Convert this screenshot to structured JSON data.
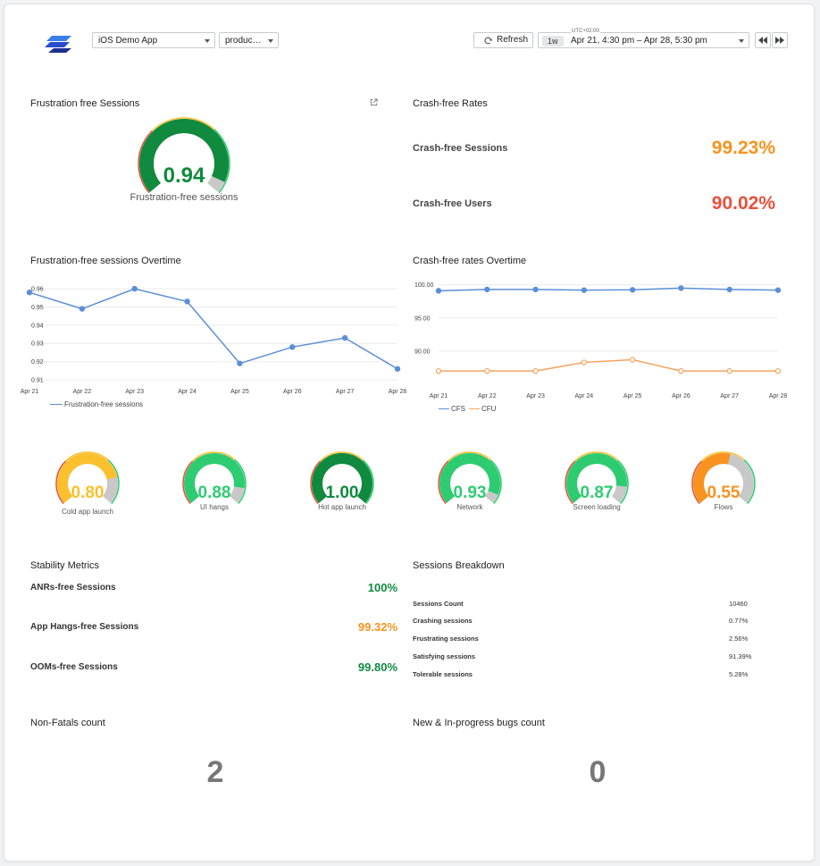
{
  "header": {
    "app_select": "iOS Demo App",
    "env_select": "produc…",
    "refresh_label": "Refresh",
    "timezone": "UTC+02:00",
    "range_tag": "1w",
    "date_range": "Apr 21, 4:30 pm – Apr 28, 5:30 pm"
  },
  "frustration": {
    "title": "Frustration free Sessions",
    "gauge_value_text": "0.94",
    "gauge_value": 0.94,
    "gauge_label": "Frustration-free sessions"
  },
  "crash_rates": {
    "title": "Crash-free Rates",
    "sessions_label": "Crash-free Sessions",
    "sessions_value": "99.23%",
    "users_label": "Crash-free Users",
    "users_value": "90.02%"
  },
  "colors": {
    "green_dark": "#0f8a3e",
    "green": "#2ecc71",
    "yellow": "#fbc02d",
    "orange": "#f7931e",
    "red": "#e8503a",
    "line_blue": "#5b8fd6",
    "line_orange": "#f4a460",
    "gauge_track": "#c8c8c8"
  },
  "ffs_chart": {
    "title": "Frustration-free sessions Overtime",
    "legend": "Frustration-free sessions"
  },
  "cfr_chart": {
    "title": "Crash-free rates Overtime",
    "legend_cfs": "CFS",
    "legend_cfu": "CFU"
  },
  "chart_data": [
    {
      "type": "line",
      "categories": [
        "Apr 21",
        "Apr 22",
        "Apr 23",
        "Apr 24",
        "Apr 25",
        "Apr 26",
        "Apr 27",
        "Apr 28"
      ],
      "series": [
        {
          "name": "Frustration-free sessions",
          "values": [
            0.958,
            0.949,
            0.96,
            0.953,
            0.919,
            0.928,
            0.933,
            0.916
          ]
        }
      ],
      "yticks": [
        "0.91",
        "0.92",
        "0.93",
        "0.94",
        "0.95",
        "0.96"
      ],
      "ylim": [
        0.91,
        0.963
      ],
      "grid": true,
      "legend": "bottom-left"
    },
    {
      "type": "line",
      "categories": [
        "Apr 21",
        "Apr 22",
        "Apr 23",
        "Apr 24",
        "Apr 25",
        "Apr 26",
        "Apr 27",
        "Apr 28"
      ],
      "series": [
        {
          "name": "CFS",
          "values": [
            99.1,
            99.3,
            99.3,
            99.2,
            99.25,
            99.5,
            99.3,
            99.2
          ]
        },
        {
          "name": "CFU",
          "values": [
            87.0,
            87.0,
            87.0,
            88.3,
            88.7,
            87.0,
            87.0,
            87.0
          ]
        }
      ],
      "yticks": [
        "90.00",
        "95.00",
        "100.00"
      ],
      "ylim": [
        85.0,
        100.5
      ],
      "grid": true,
      "legend": "bottom-left"
    }
  ],
  "gauges": [
    {
      "label": "Cold app launch",
      "text": "0.80",
      "value": 0.8,
      "color": "#fbc02d",
      "text_color": "#fbc02d"
    },
    {
      "label": "UI hangs",
      "text": "0.88",
      "value": 0.88,
      "color": "#2ecc71",
      "text_color": "#2ecc71"
    },
    {
      "label": "Hot app launch",
      "text": "1.00",
      "value": 1.0,
      "color": "#0f8a3e",
      "text_color": "#0f8a3e"
    },
    {
      "label": "Network",
      "text": "0.93",
      "value": 0.93,
      "color": "#2ecc71",
      "text_color": "#2ecc71"
    },
    {
      "label": "Screen loading",
      "text": "0.87",
      "value": 0.87,
      "color": "#2ecc71",
      "text_color": "#2ecc71"
    },
    {
      "label": "Flows",
      "text": "0.55",
      "value": 0.55,
      "color": "#f7931e",
      "text_color": "#f7931e"
    }
  ],
  "stability": {
    "title": "Stability Metrics",
    "rows": [
      {
        "label": "ANRs-free Sessions",
        "value": "100%",
        "color": "#0f8a3e"
      },
      {
        "label": "App Hangs-free Sessions",
        "value": "99.32%",
        "color": "#f7931e"
      },
      {
        "label": "OOMs-free Sessions",
        "value": "99.80%",
        "color": "#0f8a3e"
      }
    ]
  },
  "breakdown": {
    "title": "Sessions Breakdown",
    "rows": [
      {
        "label": "Sessions Count",
        "value": "10460"
      },
      {
        "label": "Crashing sessions",
        "value": "0.77%"
      },
      {
        "label": "Frustrating sessions",
        "value": "2.56%"
      },
      {
        "label": "Satisfying sessions",
        "value": "91.39%"
      },
      {
        "label": "Tolerable sessions",
        "value": "5.28%"
      }
    ]
  },
  "nonfatals": {
    "title": "Non-Fatals count",
    "value": "2"
  },
  "bugs": {
    "title": "New & In-progress bugs count",
    "value": "0"
  }
}
